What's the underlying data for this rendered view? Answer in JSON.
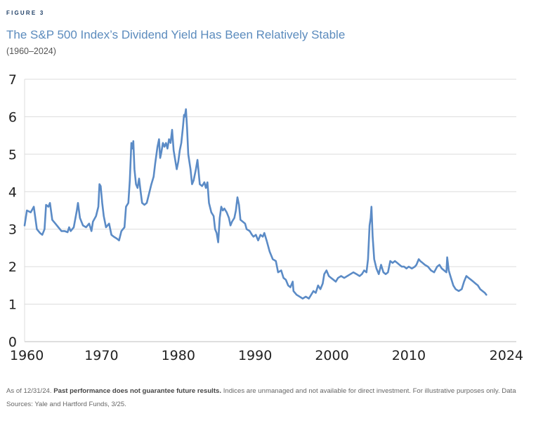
{
  "figure_label": "FIGURE 3",
  "chart_data": {
    "type": "line",
    "title": "The S&P 500 Index’s Dividend Yield Has Been Relatively Stable",
    "subtitle": "(1960–2024)",
    "xlabel": "",
    "ylabel": "",
    "xlim": [
      1960,
      2024
    ],
    "ylim": [
      0,
      7
    ],
    "grid": true,
    "x_ticks": [
      1960,
      1970,
      1980,
      1990,
      2000,
      2010,
      2024
    ],
    "y_ticks": [
      0,
      1,
      2,
      3,
      4,
      5,
      6,
      7
    ],
    "series": [
      {
        "name": "S&P 500 dividend yield (%)",
        "color": "#5b8bc6",
        "points": [
          [
            1960.0,
            3.1
          ],
          [
            1960.3,
            3.5
          ],
          [
            1960.8,
            3.45
          ],
          [
            1961.2,
            3.6
          ],
          [
            1961.6,
            3.0
          ],
          [
            1962.0,
            2.9
          ],
          [
            1962.3,
            2.85
          ],
          [
            1962.6,
            3.0
          ],
          [
            1962.8,
            3.65
          ],
          [
            1963.1,
            3.6
          ],
          [
            1963.3,
            3.7
          ],
          [
            1963.6,
            3.25
          ],
          [
            1964.0,
            3.15
          ],
          [
            1964.4,
            3.05
          ],
          [
            1964.8,
            2.95
          ],
          [
            1965.2,
            2.95
          ],
          [
            1965.6,
            2.92
          ],
          [
            1965.8,
            3.05
          ],
          [
            1966.0,
            2.95
          ],
          [
            1966.4,
            3.05
          ],
          [
            1966.8,
            3.5
          ],
          [
            1966.95,
            3.7
          ],
          [
            1967.2,
            3.3
          ],
          [
            1967.6,
            3.1
          ],
          [
            1968.0,
            3.05
          ],
          [
            1968.4,
            3.15
          ],
          [
            1968.7,
            2.95
          ],
          [
            1968.9,
            3.2
          ],
          [
            1969.3,
            3.35
          ],
          [
            1969.6,
            3.6
          ],
          [
            1969.75,
            4.2
          ],
          [
            1969.9,
            4.15
          ],
          [
            1970.1,
            3.7
          ],
          [
            1970.3,
            3.35
          ],
          [
            1970.6,
            3.05
          ],
          [
            1971.0,
            3.15
          ],
          [
            1971.3,
            2.85
          ],
          [
            1971.6,
            2.8
          ],
          [
            1972.0,
            2.75
          ],
          [
            1972.3,
            2.7
          ],
          [
            1972.6,
            2.95
          ],
          [
            1973.0,
            3.05
          ],
          [
            1973.2,
            3.6
          ],
          [
            1973.5,
            3.7
          ],
          [
            1973.7,
            4.3
          ],
          [
            1973.9,
            5.3
          ],
          [
            1974.05,
            5.15
          ],
          [
            1974.15,
            5.35
          ],
          [
            1974.3,
            4.6
          ],
          [
            1974.5,
            4.2
          ],
          [
            1974.7,
            4.1
          ],
          [
            1974.9,
            4.35
          ],
          [
            1975.1,
            4.0
          ],
          [
            1975.3,
            3.7
          ],
          [
            1975.6,
            3.65
          ],
          [
            1975.9,
            3.7
          ],
          [
            1976.2,
            3.95
          ],
          [
            1976.5,
            4.2
          ],
          [
            1976.8,
            4.4
          ],
          [
            1977.0,
            4.75
          ],
          [
            1977.3,
            5.2
          ],
          [
            1977.5,
            5.4
          ],
          [
            1977.65,
            4.9
          ],
          [
            1977.8,
            5.05
          ],
          [
            1978.0,
            5.3
          ],
          [
            1978.2,
            5.2
          ],
          [
            1978.4,
            5.3
          ],
          [
            1978.6,
            5.15
          ],
          [
            1978.8,
            5.4
          ],
          [
            1979.0,
            5.3
          ],
          [
            1979.2,
            5.65
          ],
          [
            1979.4,
            5.1
          ],
          [
            1979.6,
            4.85
          ],
          [
            1979.8,
            4.6
          ],
          [
            1980.0,
            4.8
          ],
          [
            1980.2,
            5.1
          ],
          [
            1980.4,
            5.3
          ],
          [
            1980.6,
            5.7
          ],
          [
            1980.75,
            6.05
          ],
          [
            1980.85,
            6.0
          ],
          [
            1981.0,
            6.2
          ],
          [
            1981.15,
            5.7
          ],
          [
            1981.3,
            5.0
          ],
          [
            1981.6,
            4.6
          ],
          [
            1981.8,
            4.2
          ],
          [
            1982.0,
            4.3
          ],
          [
            1982.3,
            4.6
          ],
          [
            1982.5,
            4.85
          ],
          [
            1982.8,
            4.2
          ],
          [
            1983.1,
            4.15
          ],
          [
            1983.4,
            4.25
          ],
          [
            1983.6,
            4.1
          ],
          [
            1983.8,
            4.25
          ],
          [
            1984.0,
            3.7
          ],
          [
            1984.3,
            3.45
          ],
          [
            1984.6,
            3.35
          ],
          [
            1984.8,
            3.0
          ],
          [
            1985.0,
            2.9
          ],
          [
            1985.2,
            2.65
          ],
          [
            1985.4,
            3.3
          ],
          [
            1985.6,
            3.6
          ],
          [
            1985.8,
            3.5
          ],
          [
            1986.0,
            3.55
          ],
          [
            1986.3,
            3.45
          ],
          [
            1986.6,
            3.3
          ],
          [
            1986.8,
            3.1
          ],
          [
            1987.0,
            3.2
          ],
          [
            1987.3,
            3.3
          ],
          [
            1987.5,
            3.5
          ],
          [
            1987.7,
            3.85
          ],
          [
            1987.9,
            3.65
          ],
          [
            1988.1,
            3.25
          ],
          [
            1988.4,
            3.2
          ],
          [
            1988.7,
            3.15
          ],
          [
            1988.9,
            3.0
          ],
          [
            1989.3,
            2.95
          ],
          [
            1989.6,
            2.85
          ],
          [
            1989.8,
            2.8
          ],
          [
            1990.1,
            2.85
          ],
          [
            1990.4,
            2.7
          ],
          [
            1990.7,
            2.85
          ],
          [
            1991.0,
            2.8
          ],
          [
            1991.2,
            2.9
          ],
          [
            1991.5,
            2.7
          ],
          [
            1991.9,
            2.4
          ],
          [
            1992.3,
            2.2
          ],
          [
            1992.7,
            2.15
          ],
          [
            1993.0,
            1.85
          ],
          [
            1993.4,
            1.9
          ],
          [
            1993.7,
            1.7
          ],
          [
            1994.0,
            1.65
          ],
          [
            1994.3,
            1.5
          ],
          [
            1994.6,
            1.45
          ],
          [
            1994.9,
            1.6
          ],
          [
            1995.0,
            1.35
          ],
          [
            1995.4,
            1.25
          ],
          [
            1995.8,
            1.2
          ],
          [
            1996.2,
            1.15
          ],
          [
            1996.6,
            1.2
          ],
          [
            1997.0,
            1.15
          ],
          [
            1997.3,
            1.25
          ],
          [
            1997.6,
            1.35
          ],
          [
            1997.9,
            1.3
          ],
          [
            1998.2,
            1.5
          ],
          [
            1998.5,
            1.4
          ],
          [
            1998.8,
            1.55
          ],
          [
            1999.0,
            1.8
          ],
          [
            1999.3,
            1.9
          ],
          [
            1999.6,
            1.75
          ],
          [
            1999.9,
            1.7
          ],
          [
            2000.2,
            1.65
          ],
          [
            2000.5,
            1.6
          ],
          [
            2000.8,
            1.7
          ],
          [
            2001.2,
            1.75
          ],
          [
            2001.6,
            1.7
          ],
          [
            2002.0,
            1.75
          ],
          [
            2002.4,
            1.8
          ],
          [
            2002.8,
            1.85
          ],
          [
            2003.2,
            1.8
          ],
          [
            2003.6,
            1.75
          ],
          [
            2003.9,
            1.8
          ],
          [
            2004.2,
            1.9
          ],
          [
            2004.5,
            1.85
          ],
          [
            2004.7,
            2.2
          ],
          [
            2004.9,
            3.1
          ],
          [
            2005.05,
            3.3
          ],
          [
            2005.15,
            3.6
          ],
          [
            2005.3,
            2.8
          ],
          [
            2005.5,
            2.2
          ],
          [
            2005.8,
            1.95
          ],
          [
            2006.1,
            1.8
          ],
          [
            2006.4,
            2.05
          ],
          [
            2006.7,
            1.85
          ],
          [
            2007.0,
            1.8
          ],
          [
            2007.3,
            1.85
          ],
          [
            2007.6,
            2.15
          ],
          [
            2007.9,
            2.1
          ],
          [
            2008.2,
            2.15
          ],
          [
            2008.5,
            2.1
          ],
          [
            2008.8,
            2.05
          ],
          [
            2009.1,
            2.0
          ],
          [
            2009.4,
            2.0
          ],
          [
            2009.7,
            1.95
          ],
          [
            2010.0,
            2.0
          ],
          [
            2010.4,
            1.95
          ],
          [
            2010.8,
            2.0
          ],
          [
            2011.0,
            2.05
          ],
          [
            2011.3,
            2.2
          ],
          [
            2011.5,
            2.15
          ],
          [
            2011.8,
            2.1
          ],
          [
            2012.1,
            2.05
          ],
          [
            2012.5,
            2.0
          ],
          [
            2012.9,
            1.9
          ],
          [
            2013.3,
            1.85
          ],
          [
            2013.7,
            2.0
          ],
          [
            2014.0,
            2.05
          ],
          [
            2014.3,
            1.95
          ],
          [
            2014.6,
            1.9
          ],
          [
            2014.9,
            1.85
          ],
          [
            2015.0,
            2.25
          ],
          [
            2015.2,
            1.9
          ],
          [
            2015.5,
            1.7
          ],
          [
            2015.8,
            1.5
          ],
          [
            2016.1,
            1.4
          ],
          [
            2016.5,
            1.35
          ],
          [
            2016.9,
            1.4
          ],
          [
            2017.2,
            1.6
          ],
          [
            2017.5,
            1.75
          ],
          [
            2017.8,
            1.7
          ],
          [
            2018.1,
            1.65
          ],
          [
            2018.4,
            1.6
          ],
          [
            2018.7,
            1.55
          ],
          [
            2019.0,
            1.5
          ],
          [
            2019.3,
            1.4
          ],
          [
            2019.6,
            1.35
          ],
          [
            2019.9,
            1.3
          ],
          [
            2020.1,
            1.25
          ]
        ]
      }
    ]
  },
  "footnote": {
    "prefix": "As of 12/31/24. ",
    "bold": "Past performance does not guarantee future results.",
    "rest": " Indices are unmanaged and not available for direct investment. For illustrative purposes only. Data Sources: Yale and Hartford Funds, 3/25."
  }
}
